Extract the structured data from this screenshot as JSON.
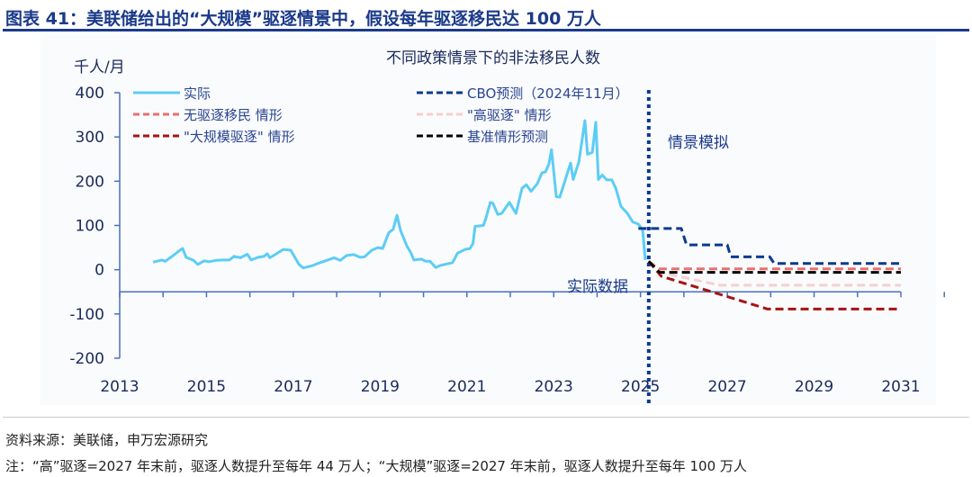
{
  "header": {
    "title": "图表 41：美联储给出的“大规模”驱逐情景中，假设每年驱逐移民达 100 万人"
  },
  "footer": {
    "source": "资料来源：美联储，申万宏源研究",
    "note": "注：“高”驱逐=2027 年末前，驱逐人数提升至每年 44 万人；“大规模”驱逐=2027 年末前，驱逐人数提升至每年 100 万人"
  },
  "chart_data": {
    "type": "line",
    "title": "不同政策情景下的非法移民人数",
    "ylabel": "千人/月",
    "xlabel": "",
    "xlim": [
      2013,
      2031
    ],
    "ylim": [
      -200,
      400
    ],
    "xticks": [
      "2013",
      "2015",
      "2017",
      "2019",
      "2021",
      "2023",
      "2025",
      "2027",
      "2029",
      "2031"
    ],
    "yticks": [
      "400",
      "300",
      "200",
      "100",
      "0",
      "-100",
      "-200"
    ],
    "grid": false,
    "legend_placement": "top",
    "annotations": {
      "actual_label": "实际数据",
      "scenario_label": "情景模拟",
      "divider_year": 2025.19
    },
    "series": [
      {
        "name": "实际",
        "color": "#5ccdf5",
        "style": "solid",
        "points": [
          [
            2013.77,
            17
          ],
          [
            2013.97,
            22
          ],
          [
            2014.05,
            19
          ],
          [
            2014.22,
            31
          ],
          [
            2014.39,
            44
          ],
          [
            2014.45,
            48
          ],
          [
            2014.53,
            28
          ],
          [
            2014.7,
            21
          ],
          [
            2014.8,
            12
          ],
          [
            2014.95,
            20
          ],
          [
            2015.05,
            18
          ],
          [
            2015.22,
            21
          ],
          [
            2015.36,
            22
          ],
          [
            2015.53,
            22
          ],
          [
            2015.63,
            30
          ],
          [
            2015.78,
            27
          ],
          [
            2015.94,
            35
          ],
          [
            2016.03,
            22
          ],
          [
            2016.19,
            28
          ],
          [
            2016.32,
            30
          ],
          [
            2016.4,
            36
          ],
          [
            2016.46,
            27
          ],
          [
            2016.61,
            36
          ],
          [
            2016.77,
            46
          ],
          [
            2016.94,
            44
          ],
          [
            2017.13,
            12
          ],
          [
            2017.23,
            4
          ],
          [
            2017.44,
            9
          ],
          [
            2017.56,
            14
          ],
          [
            2017.77,
            21
          ],
          [
            2017.94,
            27
          ],
          [
            2018.08,
            21
          ],
          [
            2018.23,
            32
          ],
          [
            2018.39,
            34
          ],
          [
            2018.54,
            28
          ],
          [
            2018.64,
            29
          ],
          [
            2018.81,
            44
          ],
          [
            2018.95,
            50
          ],
          [
            2019.06,
            48
          ],
          [
            2019.2,
            84
          ],
          [
            2019.3,
            91
          ],
          [
            2019.39,
            123
          ],
          [
            2019.47,
            89
          ],
          [
            2019.62,
            53
          ],
          [
            2019.7,
            40
          ],
          [
            2019.78,
            22
          ],
          [
            2019.95,
            24
          ],
          [
            2020.05,
            19
          ],
          [
            2020.15,
            19
          ],
          [
            2020.28,
            5
          ],
          [
            2020.4,
            10
          ],
          [
            2020.67,
            16
          ],
          [
            2020.78,
            37
          ],
          [
            2020.96,
            46
          ],
          [
            2021.07,
            48
          ],
          [
            2021.14,
            59
          ],
          [
            2021.19,
            98
          ],
          [
            2021.38,
            100
          ],
          [
            2021.44,
            117
          ],
          [
            2021.54,
            152
          ],
          [
            2021.6,
            150
          ],
          [
            2021.71,
            125
          ],
          [
            2021.8,
            127
          ],
          [
            2021.98,
            152
          ],
          [
            2022.13,
            127
          ],
          [
            2022.27,
            184
          ],
          [
            2022.37,
            192
          ],
          [
            2022.48,
            177
          ],
          [
            2022.62,
            194
          ],
          [
            2022.73,
            219
          ],
          [
            2022.81,
            221
          ],
          [
            2022.89,
            239
          ],
          [
            2022.95,
            271
          ],
          [
            2023.06,
            165
          ],
          [
            2023.14,
            164
          ],
          [
            2023.39,
            241
          ],
          [
            2023.45,
            204
          ],
          [
            2023.58,
            244
          ],
          [
            2023.72,
            337
          ],
          [
            2023.78,
            261
          ],
          [
            2023.89,
            265
          ],
          [
            2023.97,
            333
          ],
          [
            2024.03,
            204
          ],
          [
            2024.12,
            214
          ],
          [
            2024.22,
            203
          ],
          [
            2024.34,
            203
          ],
          [
            2024.43,
            184
          ],
          [
            2024.55,
            143
          ],
          [
            2024.7,
            127
          ],
          [
            2024.82,
            108
          ],
          [
            2024.95,
            103
          ],
          [
            2025.05,
            89
          ],
          [
            2025.11,
            22
          ]
        ]
      },
      {
        "name": "无驱逐移民 情形",
        "color": "#e8706e",
        "style": "dash",
        "points": [
          [
            2025.19,
            19
          ],
          [
            2025.41,
            2
          ],
          [
            2031,
            2
          ]
        ]
      },
      {
        "name": "\"大规模驱逐\" 情形",
        "color": "#a51414",
        "style": "dash",
        "points": [
          [
            2025.19,
            19
          ],
          [
            2025.48,
            -15
          ],
          [
            2027.93,
            -89
          ],
          [
            2031,
            -89
          ]
        ]
      },
      {
        "name": "CBO预测（2024年11月）",
        "color": "#0b3a8e",
        "style": "dash",
        "points": [
          [
            2024.95,
            93
          ],
          [
            2025.94,
            93
          ],
          [
            2026.06,
            56
          ],
          [
            2027.0,
            56
          ],
          [
            2027.08,
            29
          ],
          [
            2027.98,
            29
          ],
          [
            2028.08,
            14
          ],
          [
            2031,
            14
          ]
        ]
      },
      {
        "name": "\"高驱逐\" 情形",
        "color": "#f6cfcf",
        "style": "dash",
        "points": [
          [
            2025.19,
            19
          ],
          [
            2025.45,
            -6
          ],
          [
            2026.83,
            -35
          ],
          [
            2031,
            -35
          ]
        ]
      },
      {
        "name": "基准情形预测",
        "color": "#000000",
        "style": "dash",
        "points": [
          [
            2025.19,
            19
          ],
          [
            2025.44,
            -6
          ],
          [
            2031,
            -6
          ]
        ]
      }
    ]
  }
}
